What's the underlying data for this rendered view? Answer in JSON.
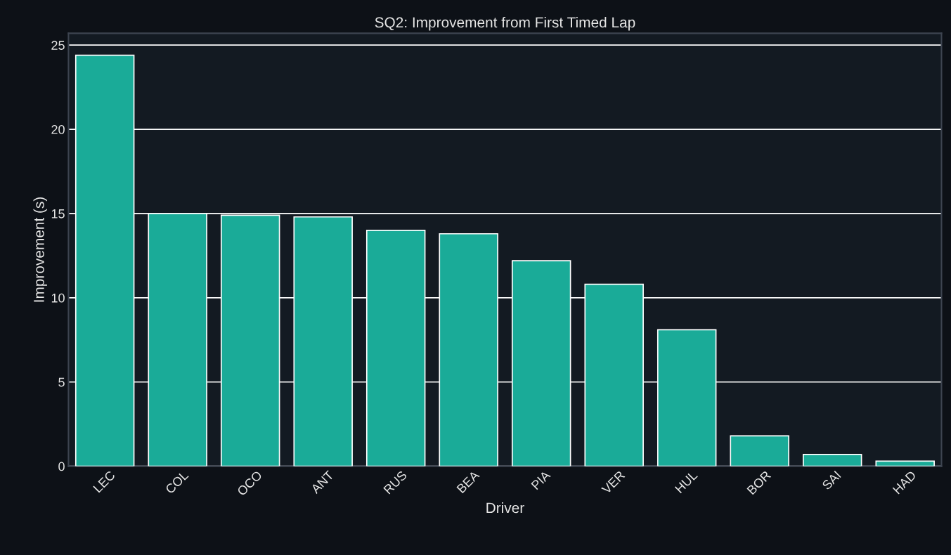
{
  "chart_data": {
    "type": "bar",
    "title": "SQ2: Improvement from First Timed Lap",
    "xlabel": "Driver",
    "ylabel": "Improvement (s)",
    "categories": [
      "LEC",
      "COL",
      "OCO",
      "ANT",
      "RUS",
      "BEA",
      "PIA",
      "VER",
      "HUL",
      "BOR",
      "SAI",
      "HAD"
    ],
    "values": [
      24.4,
      15.0,
      14.9,
      14.8,
      14.0,
      13.8,
      12.2,
      10.8,
      8.1,
      1.8,
      0.7,
      0.3
    ],
    "color": "#1aab98",
    "ylim": [
      0,
      25.7
    ],
    "yticks": [
      0,
      5,
      10,
      15,
      20,
      25
    ],
    "grid": "y"
  }
}
